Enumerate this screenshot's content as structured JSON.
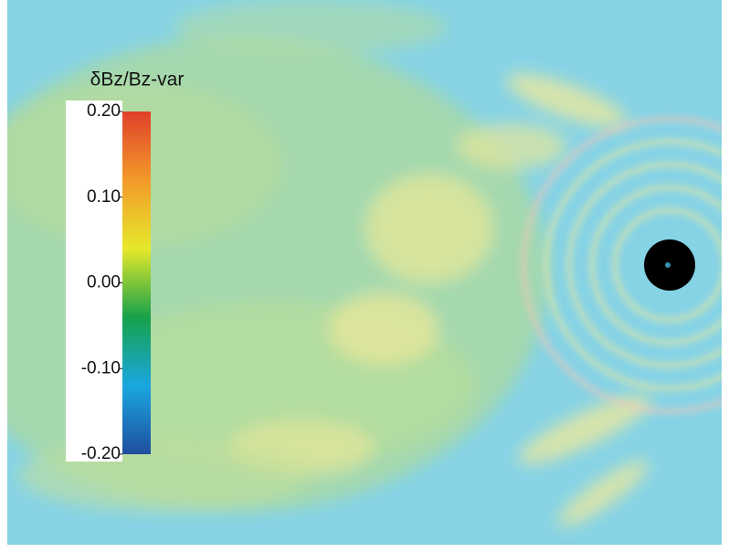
{
  "chart_data": {
    "type": "colormap",
    "colorbar_title": "δBz/Bz-var",
    "clim": [
      -0.2,
      0.2
    ],
    "cticks": [
      {
        "value": 0.2,
        "label": "0.20"
      },
      {
        "value": 0.1,
        "label": "0.10"
      },
      {
        "value": 0,
        "label": "0.00"
      },
      {
        "value": -0.1,
        "label": "-0.10"
      },
      {
        "value": -0.2,
        "label": "-0.20"
      }
    ],
    "colors": [
      "#1f4e9e",
      "#1aa7e0",
      "#17a24a",
      "#e6e82a",
      "#f29a2a",
      "#e0402a"
    ]
  }
}
